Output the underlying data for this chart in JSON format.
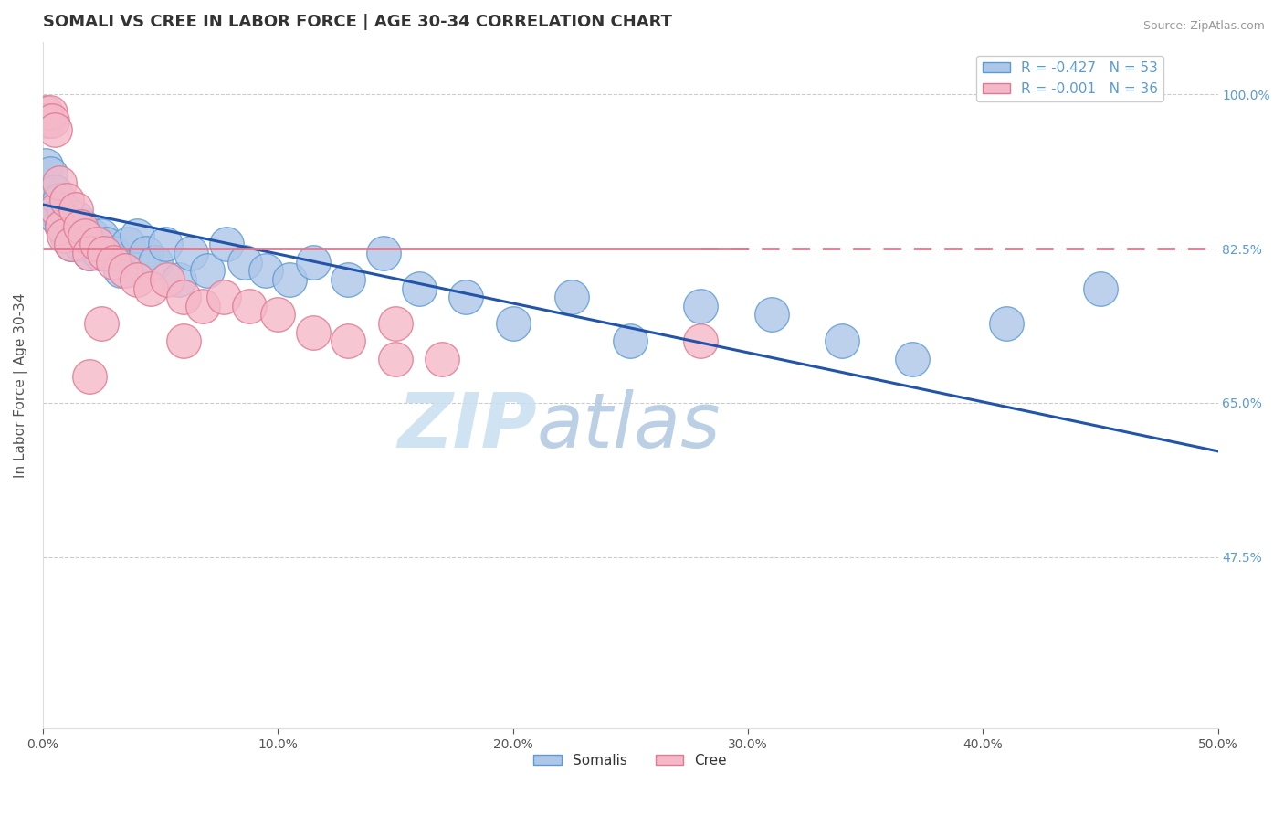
{
  "title": "SOMALI VS CREE IN LABOR FORCE | AGE 30-34 CORRELATION CHART",
  "source_text": "Source: ZipAtlas.com",
  "ylabel": "In Labor Force | Age 30-34",
  "xlim": [
    0.0,
    0.5
  ],
  "ylim": [
    0.28,
    1.06
  ],
  "xtick_labels": [
    "0.0%",
    "10.0%",
    "20.0%",
    "30.0%",
    "40.0%",
    "50.0%"
  ],
  "xtick_values": [
    0.0,
    0.1,
    0.2,
    0.3,
    0.4,
    0.5
  ],
  "ytick_labels": [
    "47.5%",
    "65.0%",
    "82.5%",
    "100.0%"
  ],
  "ytick_values": [
    0.475,
    0.65,
    0.825,
    1.0
  ],
  "grid_color": "#cccccc",
  "background_color": "#ffffff",
  "somali_color": "#aec6e8",
  "somali_edge_color": "#5b9bd5",
  "cree_color": "#f4b8c8",
  "cree_edge_color": "#e07890",
  "somali_line_color": "#2255aa",
  "cree_line_color": "#e07890",
  "somali_R": -0.427,
  "somali_N": 53,
  "cree_R": -0.001,
  "cree_N": 36,
  "legend_label_somali": "Somalis",
  "legend_label_cree": "Cree",
  "watermark_zip": "ZIP",
  "watermark_atlas": "atlas",
  "somali_x": [
    0.001,
    0.002,
    0.003,
    0.004,
    0.005,
    0.006,
    0.007,
    0.008,
    0.009,
    0.01,
    0.011,
    0.012,
    0.013,
    0.014,
    0.015,
    0.016,
    0.017,
    0.018,
    0.019,
    0.02,
    0.021,
    0.022,
    0.024,
    0.025,
    0.027,
    0.03,
    0.033,
    0.036,
    0.04,
    0.044,
    0.048,
    0.052,
    0.058,
    0.063,
    0.07,
    0.078,
    0.086,
    0.095,
    0.105,
    0.115,
    0.13,
    0.145,
    0.16,
    0.18,
    0.2,
    0.225,
    0.25,
    0.28,
    0.31,
    0.34,
    0.37,
    0.41,
    0.45
  ],
  "somali_y": [
    0.92,
    0.88,
    0.91,
    0.87,
    0.89,
    0.86,
    0.88,
    0.85,
    0.87,
    0.84,
    0.86,
    0.83,
    0.85,
    0.86,
    0.84,
    0.83,
    0.85,
    0.84,
    0.83,
    0.82,
    0.84,
    0.83,
    0.82,
    0.84,
    0.83,
    0.82,
    0.8,
    0.83,
    0.84,
    0.82,
    0.81,
    0.83,
    0.79,
    0.82,
    0.8,
    0.83,
    0.81,
    0.8,
    0.79,
    0.81,
    0.79,
    0.82,
    0.78,
    0.77,
    0.74,
    0.77,
    0.72,
    0.76,
    0.75,
    0.72,
    0.7,
    0.74,
    0.78
  ],
  "cree_x": [
    0.001,
    0.002,
    0.003,
    0.004,
    0.005,
    0.006,
    0.007,
    0.008,
    0.009,
    0.01,
    0.012,
    0.014,
    0.016,
    0.018,
    0.02,
    0.023,
    0.026,
    0.03,
    0.035,
    0.04,
    0.046,
    0.053,
    0.06,
    0.068,
    0.077,
    0.088,
    0.1,
    0.115,
    0.13,
    0.15,
    0.025,
    0.06,
    0.15,
    0.02,
    0.17,
    0.28
  ],
  "cree_y": [
    0.98,
    0.97,
    0.98,
    0.97,
    0.96,
    0.87,
    0.9,
    0.85,
    0.84,
    0.88,
    0.83,
    0.87,
    0.85,
    0.84,
    0.82,
    0.83,
    0.82,
    0.81,
    0.8,
    0.79,
    0.78,
    0.79,
    0.77,
    0.76,
    0.77,
    0.76,
    0.75,
    0.73,
    0.72,
    0.74,
    0.74,
    0.72,
    0.7,
    0.68,
    0.7,
    0.72
  ],
  "title_fontsize": 13,
  "axis_label_fontsize": 11,
  "tick_fontsize": 10,
  "legend_fontsize": 11,
  "marker_size": 9
}
